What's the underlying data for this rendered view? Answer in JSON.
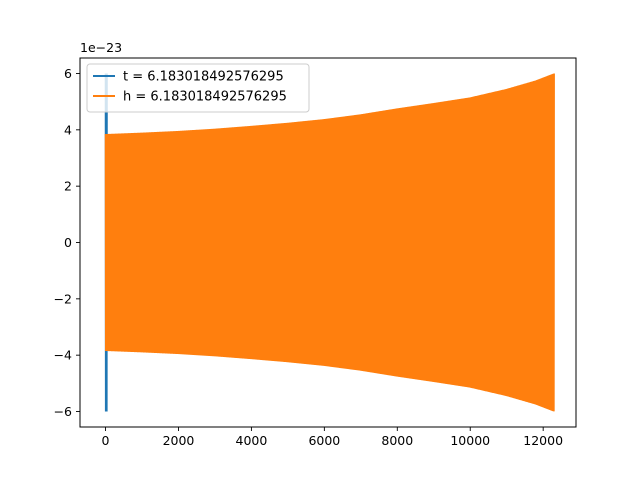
{
  "chart_data": {
    "type": "line",
    "title": "",
    "xlabel": "",
    "ylabel": "",
    "y_offset_label": "1e−23",
    "xlim": [
      -700,
      12900
    ],
    "ylim": [
      -6.55,
      6.55
    ],
    "x_ticks": [
      {
        "value": 0,
        "label": "0"
      },
      {
        "value": 2000,
        "label": "2000"
      },
      {
        "value": 4000,
        "label": "4000"
      },
      {
        "value": 6000,
        "label": "6000"
      },
      {
        "value": 8000,
        "label": "8000"
      },
      {
        "value": 10000,
        "label": "10000"
      },
      {
        "value": 12000,
        "label": "12000"
      }
    ],
    "y_ticks": [
      {
        "value": -6,
        "label": "−6"
      },
      {
        "value": -4,
        "label": "−4"
      },
      {
        "value": -2,
        "label": "−2"
      },
      {
        "value": 0,
        "label": "0"
      },
      {
        "value": 2,
        "label": "2"
      },
      {
        "value": 4,
        "label": "4"
      },
      {
        "value": 6,
        "label": "6"
      }
    ],
    "grid": false,
    "legend_position": "upper-left",
    "series": [
      {
        "name": "t = 6.183018492576295",
        "color": "#1f77b4",
        "style": "oscillating",
        "x_range": [
          0,
          40
        ],
        "envelope": [
          [
            0,
            6.0
          ],
          [
            40,
            6.0
          ]
        ]
      },
      {
        "name": "h = 6.183018492576295",
        "color": "#ff7f0e",
        "style": "oscillating",
        "x_range": [
          0,
          12300
        ],
        "envelope": [
          [
            0,
            3.85
          ],
          [
            1000,
            3.9
          ],
          [
            2000,
            3.96
          ],
          [
            3000,
            4.04
          ],
          [
            4000,
            4.14
          ],
          [
            5000,
            4.25
          ],
          [
            6000,
            4.38
          ],
          [
            7000,
            4.55
          ],
          [
            8000,
            4.76
          ],
          [
            9000,
            4.95
          ],
          [
            10000,
            5.15
          ],
          [
            11000,
            5.45
          ],
          [
            11800,
            5.75
          ],
          [
            12300,
            6.0
          ]
        ]
      }
    ]
  }
}
